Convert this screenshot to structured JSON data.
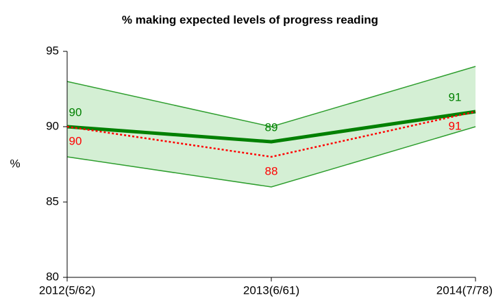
{
  "chart_data": {
    "type": "line",
    "title": "% making expected levels of progress reading",
    "y_label": "%",
    "categories": [
      "2012(5/62)",
      "2013(6/61)",
      "2014(7/78)"
    ],
    "series": [
      {
        "color": "#008000",
        "style": "solid",
        "values": [
          90,
          89,
          91
        ]
      },
      {
        "color": "#ff0000",
        "style": "dotted",
        "values": [
          90,
          88,
          91
        ]
      }
    ],
    "band": {
      "upper": [
        93,
        90,
        94
      ],
      "lower": [
        88,
        86,
        90
      ],
      "color": "#2e9e2e",
      "fill": "#d4efd4"
    },
    "ylim": [
      80,
      95
    ],
    "yticks": [
      80,
      85,
      90,
      95
    ],
    "grid": false
  }
}
